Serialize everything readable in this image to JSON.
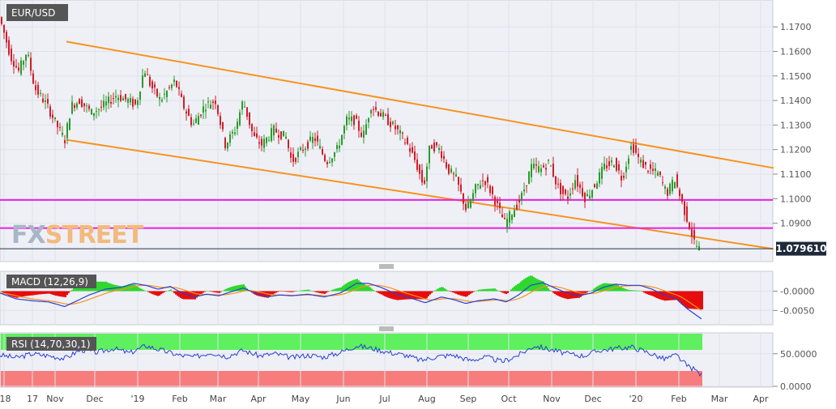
{
  "chart_data": [
    {
      "type": "candlestick",
      "title": "EUR/USD",
      "last_price": "1.079610",
      "y_ticks": [
        "1.1700",
        "1.1600",
        "1.1500",
        "1.1400",
        "1.1300",
        "1.1200",
        "1.1100",
        "1.1000",
        "1.0900"
      ],
      "ylim": [
        1.077,
        1.176
      ],
      "x_ticks": [
        "'18",
        "17",
        "Nov",
        "Dec",
        "'19",
        "Feb",
        "Mar",
        "Apr",
        "May",
        "Jun",
        "Jul",
        "Aug",
        "Sep",
        "Oct",
        "Nov",
        "Dec",
        "'20",
        "Feb",
        "Mar",
        "Apr"
      ],
      "price_path": [
        [
          0,
          1.175
        ],
        [
          5,
          1.17
        ],
        [
          15,
          1.158
        ],
        [
          25,
          1.152
        ],
        [
          35,
          1.16
        ],
        [
          45,
          1.145
        ],
        [
          60,
          1.138
        ],
        [
          75,
          1.128
        ],
        [
          82,
          1.124
        ],
        [
          90,
          1.138
        ],
        [
          100,
          1.14
        ],
        [
          115,
          1.135
        ],
        [
          130,
          1.138
        ],
        [
          145,
          1.142
        ],
        [
          160,
          1.14
        ],
        [
          170,
          1.138
        ],
        [
          180,
          1.153
        ],
        [
          188,
          1.146
        ],
        [
          200,
          1.14
        ],
        [
          218,
          1.148
        ],
        [
          228,
          1.138
        ],
        [
          240,
          1.13
        ],
        [
          255,
          1.138
        ],
        [
          268,
          1.14
        ],
        [
          280,
          1.122
        ],
        [
          292,
          1.128
        ],
        [
          302,
          1.14
        ],
        [
          315,
          1.125
        ],
        [
          325,
          1.122
        ],
        [
          340,
          1.128
        ],
        [
          355,
          1.125
        ],
        [
          362,
          1.115
        ],
        [
          375,
          1.12
        ],
        [
          390,
          1.125
        ],
        [
          405,
          1.115
        ],
        [
          418,
          1.12
        ],
        [
          430,
          1.132
        ],
        [
          440,
          1.132
        ],
        [
          450,
          1.125
        ],
        [
          460,
          1.138
        ],
        [
          470,
          1.135
        ],
        [
          480,
          1.132
        ],
        [
          492,
          1.128
        ],
        [
          505,
          1.122
        ],
        [
          515,
          1.115
        ],
        [
          525,
          1.105
        ],
        [
          533,
          1.122
        ],
        [
          545,
          1.12
        ],
        [
          555,
          1.112
        ],
        [
          565,
          1.108
        ],
        [
          578,
          1.095
        ],
        [
          590,
          1.105
        ],
        [
          600,
          1.108
        ],
        [
          612,
          1.1
        ],
        [
          625,
          1.09
        ],
        [
          635,
          1.095
        ],
        [
          645,
          1.1
        ],
        [
          658,
          1.113
        ],
        [
          670,
          1.112
        ],
        [
          680,
          1.115
        ],
        [
          690,
          1.105
        ],
        [
          702,
          1.1
        ],
        [
          712,
          1.108
        ],
        [
          725,
          1.1
        ],
        [
          735,
          1.105
        ],
        [
          748,
          1.113
        ],
        [
          760,
          1.115
        ],
        [
          770,
          1.108
        ],
        [
          778,
          1.118
        ],
        [
          782,
          1.122
        ],
        [
          792,
          1.115
        ],
        [
          802,
          1.112
        ],
        [
          815,
          1.11
        ],
        [
          825,
          1.102
        ],
        [
          835,
          1.108
        ],
        [
          845,
          1.097
        ],
        [
          852,
          1.09
        ],
        [
          858,
          1.083
        ],
        [
          864,
          1.0796
        ]
      ],
      "lines": [
        {
          "name": "upper-channel",
          "color": "#f7931e",
          "from": [
            82,
            1.164
          ],
          "to": [
            955,
            1.1125
          ]
        },
        {
          "name": "lower-channel",
          "color": "#f7931e",
          "from": [
            82,
            1.124
          ],
          "to": [
            955,
            1.0795
          ]
        },
        {
          "name": "support-1.1000",
          "color": "#e91ee5",
          "value": 1.0995
        },
        {
          "name": "support-1.0880",
          "color": "#e91ee5",
          "value": 1.088
        }
      ]
    },
    {
      "type": "line",
      "title": "MACD (12,26,9)",
      "y_ticks": [
        "-0.0000",
        "-0.0050"
      ],
      "ylim": [
        -0.0085,
        0.0045
      ],
      "series": [
        {
          "name": "MACD",
          "color": "#2a3fd4"
        },
        {
          "name": "Signal",
          "color": "#f7931e"
        }
      ],
      "macd_path": [
        [
          0,
          -0.0005
        ],
        [
          20,
          -0.002
        ],
        [
          40,
          -0.0025
        ],
        [
          60,
          -0.0028
        ],
        [
          80,
          -0.004
        ],
        [
          95,
          -0.0025
        ],
        [
          110,
          -0.001
        ],
        [
          130,
          0.0005
        ],
        [
          150,
          0.001
        ],
        [
          165,
          0.002
        ],
        [
          180,
          0.0015
        ],
        [
          195,
          0.0005
        ],
        [
          210,
          0.0012
        ],
        [
          225,
          -0.0005
        ],
        [
          240,
          -0.0015
        ],
        [
          255,
          -0.0008
        ],
        [
          270,
          -0.0012
        ],
        [
          285,
          -0.0002
        ],
        [
          300,
          0.0008
        ],
        [
          315,
          -0.0005
        ],
        [
          330,
          -0.0015
        ],
        [
          345,
          -0.001
        ],
        [
          360,
          -0.0012
        ],
        [
          380,
          -0.0008
        ],
        [
          400,
          -0.0015
        ],
        [
          420,
          -0.0005
        ],
        [
          440,
          0.002
        ],
        [
          455,
          0.002
        ],
        [
          470,
          0.001
        ],
        [
          490,
          -0.0008
        ],
        [
          510,
          -0.002
        ],
        [
          525,
          -0.003
        ],
        [
          545,
          -0.0015
        ],
        [
          560,
          -0.0022
        ],
        [
          575,
          -0.0032
        ],
        [
          590,
          -0.0025
        ],
        [
          610,
          -0.002
        ],
        [
          625,
          -0.0028
        ],
        [
          640,
          -0.001
        ],
        [
          655,
          0.0015
        ],
        [
          670,
          0.0022
        ],
        [
          685,
          0.0008
        ],
        [
          700,
          -0.0005
        ],
        [
          715,
          -0.0012
        ],
        [
          730,
          -0.0005
        ],
        [
          745,
          0.001
        ],
        [
          760,
          0.0018
        ],
        [
          775,
          0.0015
        ],
        [
          790,
          0.0015
        ],
        [
          805,
          0.0005
        ],
        [
          820,
          -0.001
        ],
        [
          835,
          -0.002
        ],
        [
          848,
          -0.0045
        ],
        [
          858,
          -0.006
        ],
        [
          866,
          -0.0072
        ]
      ]
    },
    {
      "type": "line",
      "title": "RSI (14,70,30,1)",
      "y_ticks": [
        "50.0000",
        "0.0000"
      ],
      "ylim": [
        0,
        80
      ],
      "series": [
        {
          "name": "RSI",
          "color": "#2a3fd4"
        }
      ],
      "rsi_path": [
        [
          0,
          48
        ],
        [
          20,
          44
        ],
        [
          40,
          50
        ],
        [
          60,
          47
        ],
        [
          80,
          43
        ],
        [
          100,
          56
        ],
        [
          120,
          52
        ],
        [
          140,
          58
        ],
        [
          160,
          51
        ],
        [
          180,
          62
        ],
        [
          200,
          55
        ],
        [
          220,
          48
        ],
        [
          240,
          45
        ],
        [
          260,
          52
        ],
        [
          280,
          46
        ],
        [
          300,
          55
        ],
        [
          320,
          47
        ],
        [
          340,
          50
        ],
        [
          360,
          44
        ],
        [
          380,
          48
        ],
        [
          400,
          45
        ],
        [
          420,
          52
        ],
        [
          440,
          62
        ],
        [
          460,
          58
        ],
        [
          480,
          52
        ],
        [
          500,
          48
        ],
        [
          520,
          40
        ],
        [
          540,
          46
        ],
        [
          560,
          48
        ],
        [
          580,
          40
        ],
        [
          600,
          45
        ],
        [
          620,
          38
        ],
        [
          640,
          48
        ],
        [
          660,
          62
        ],
        [
          680,
          56
        ],
        [
          700,
          50
        ],
        [
          720,
          47
        ],
        [
          740,
          55
        ],
        [
          760,
          58
        ],
        [
          780,
          60
        ],
        [
          800,
          52
        ],
        [
          820,
          42
        ],
        [
          835,
          48
        ],
        [
          848,
          32
        ],
        [
          858,
          26
        ],
        [
          866,
          18
        ]
      ]
    }
  ],
  "colors": {
    "candle_up": "#2a9a2a",
    "candle_down": "#d01e2a",
    "histogram_up": "#2fd82f",
    "histogram_down": "#e80d0d",
    "rsi_overbought": "#5ef05e",
    "rsi_oversold": "#f77d7d",
    "badge": "#555555"
  },
  "watermark": {
    "part1": "FX",
    "part2": "STREET"
  }
}
